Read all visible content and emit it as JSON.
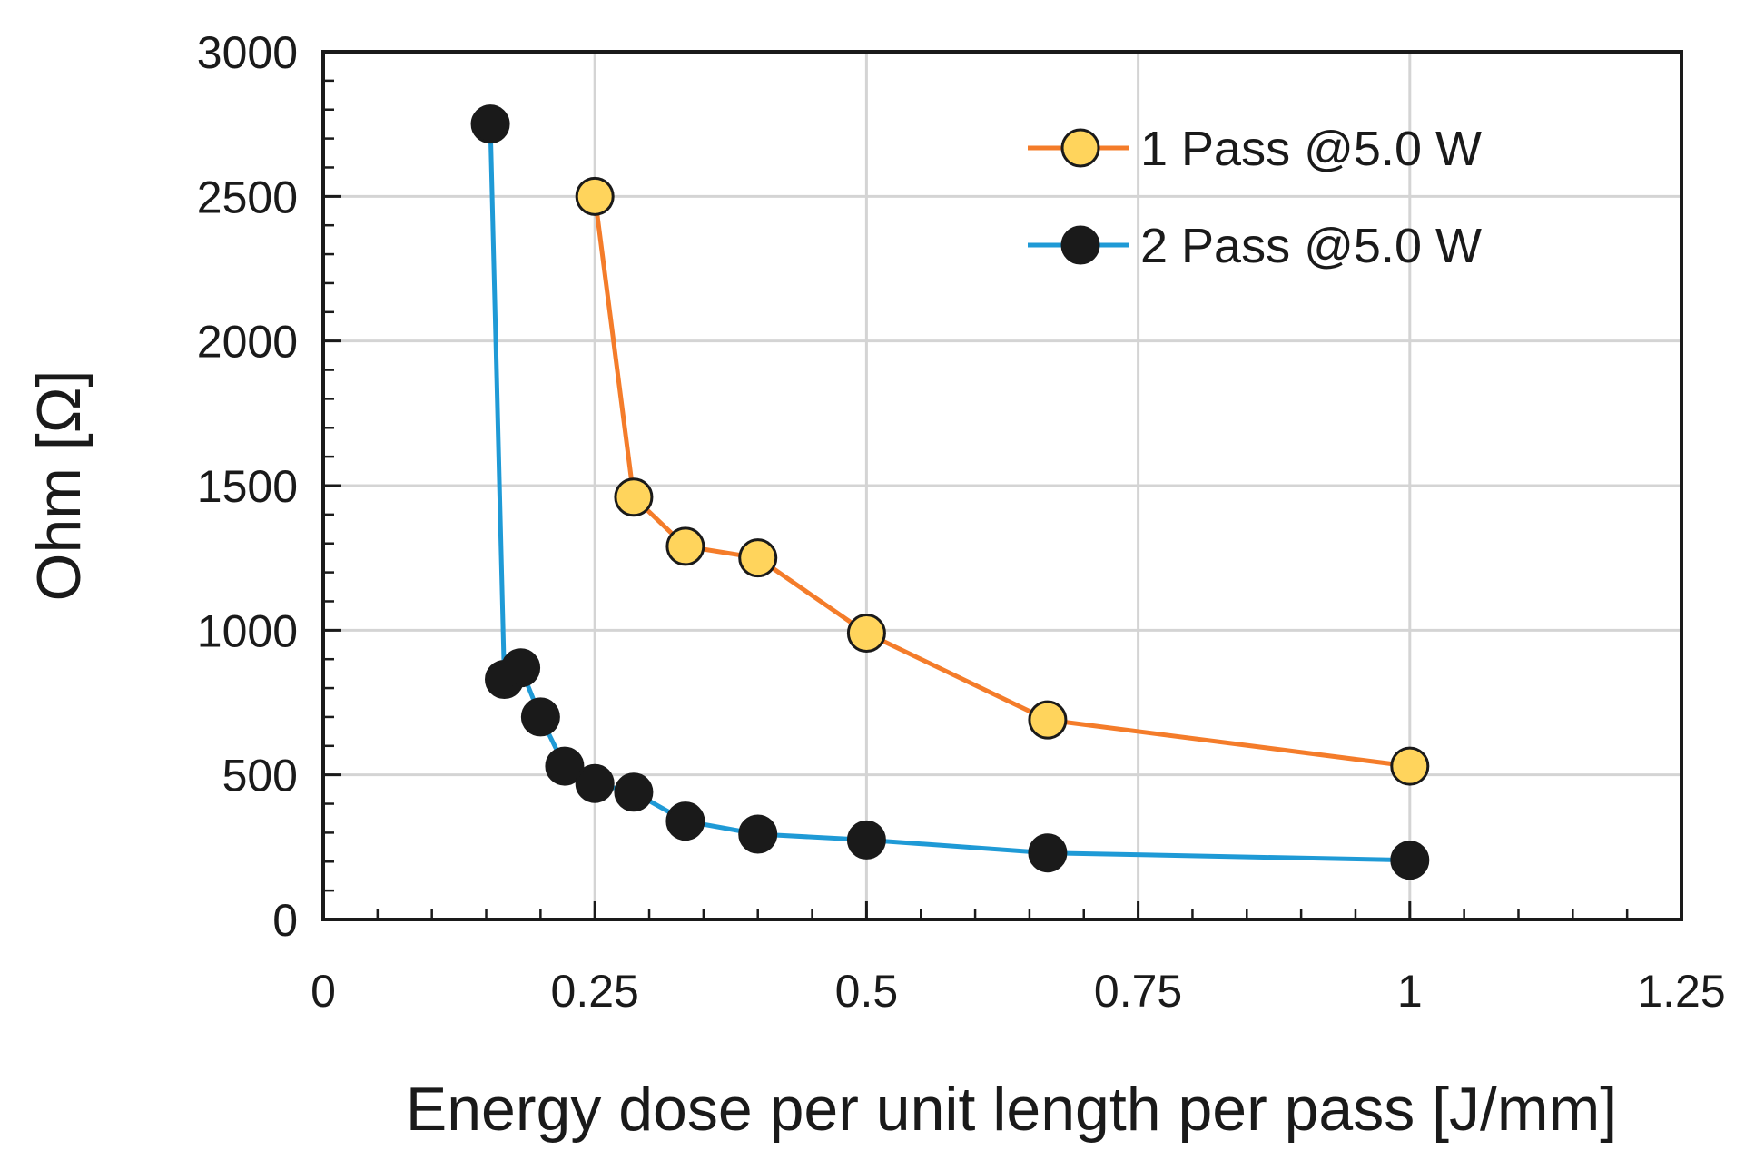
{
  "chart_data": {
    "type": "line",
    "title": "",
    "xlabel": "Energy dose per unit length per pass [J/mm]",
    "ylabel": "Ohm [Ω]",
    "xlim": [
      0,
      1.25
    ],
    "ylim": [
      0,
      3000
    ],
    "x_ticks": [
      "0",
      "0.25",
      "0.5",
      "0.75",
      "1",
      "1.25"
    ],
    "y_ticks": [
      "0",
      "500",
      "1000",
      "1500",
      "2000",
      "2500",
      "3000"
    ],
    "grid": true,
    "legend_position": "top-right",
    "series": [
      {
        "name": "1 Pass @5.0 W",
        "line_color": "#f47c2a",
        "marker_color": "#ffd45c",
        "x": [
          0.25,
          0.2857,
          0.3333,
          0.4,
          0.5,
          0.6667,
          1.0
        ],
        "y": [
          2500,
          1460,
          1290,
          1250,
          990,
          690,
          530
        ]
      },
      {
        "name": "2 Pass @5.0 W",
        "line_color": "#1f9ad6",
        "marker_color": "#1a1a1a",
        "x": [
          0.1538,
          0.1667,
          0.1818,
          0.2,
          0.2222,
          0.25,
          0.2857,
          0.3333,
          0.4,
          0.5,
          0.6667,
          1.0
        ],
        "y": [
          2750,
          830,
          870,
          700,
          530,
          470,
          440,
          340,
          295,
          275,
          230,
          205
        ]
      }
    ]
  }
}
